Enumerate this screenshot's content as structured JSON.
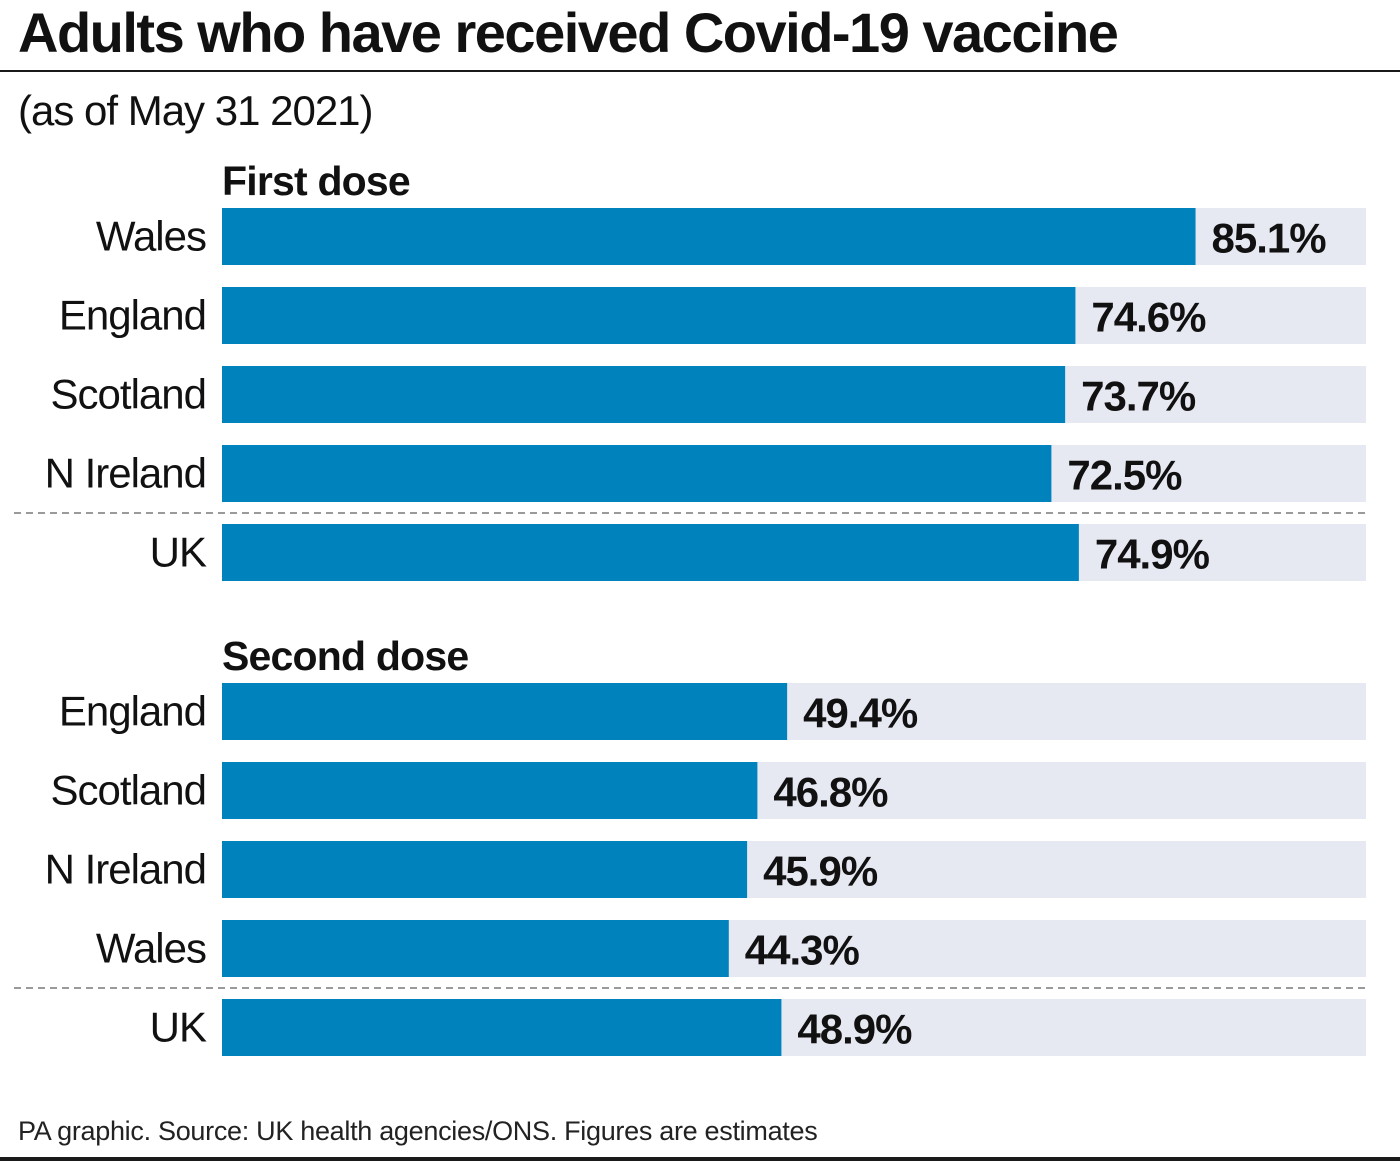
{
  "header": {
    "title": "Adults who have received Covid-19 vaccine",
    "subtitle": "(as of May 31 2021)"
  },
  "footer": {
    "source": "PA graphic. Source: UK health agencies/ONS. Figures are estimates"
  },
  "colors": {
    "bar": "#0082bd",
    "track": "#e6e8f2",
    "text": "#111111",
    "separator": "#9a9a9a"
  },
  "chart_data": [
    {
      "type": "bar",
      "orientation": "horizontal",
      "title": "First dose",
      "categories": [
        "Wales",
        "England",
        "Scotland",
        "N Ireland",
        "UK"
      ],
      "values": [
        85.1,
        74.6,
        73.7,
        72.5,
        74.9
      ],
      "value_labels": [
        "85.1%",
        "74.6%",
        "73.7%",
        "72.5%",
        "74.9%"
      ],
      "xlim": [
        0,
        100
      ],
      "grid": false,
      "separator_before": "UK"
    },
    {
      "type": "bar",
      "orientation": "horizontal",
      "title": "Second dose",
      "categories": [
        "England",
        "Scotland",
        "N Ireland",
        "Wales",
        "UK"
      ],
      "values": [
        49.4,
        46.8,
        45.9,
        44.3,
        48.9
      ],
      "value_labels": [
        "49.4%",
        "46.8%",
        "45.9%",
        "44.3%",
        "48.9%"
      ],
      "xlim": [
        0,
        100
      ],
      "grid": false,
      "separator_before": "UK"
    }
  ]
}
